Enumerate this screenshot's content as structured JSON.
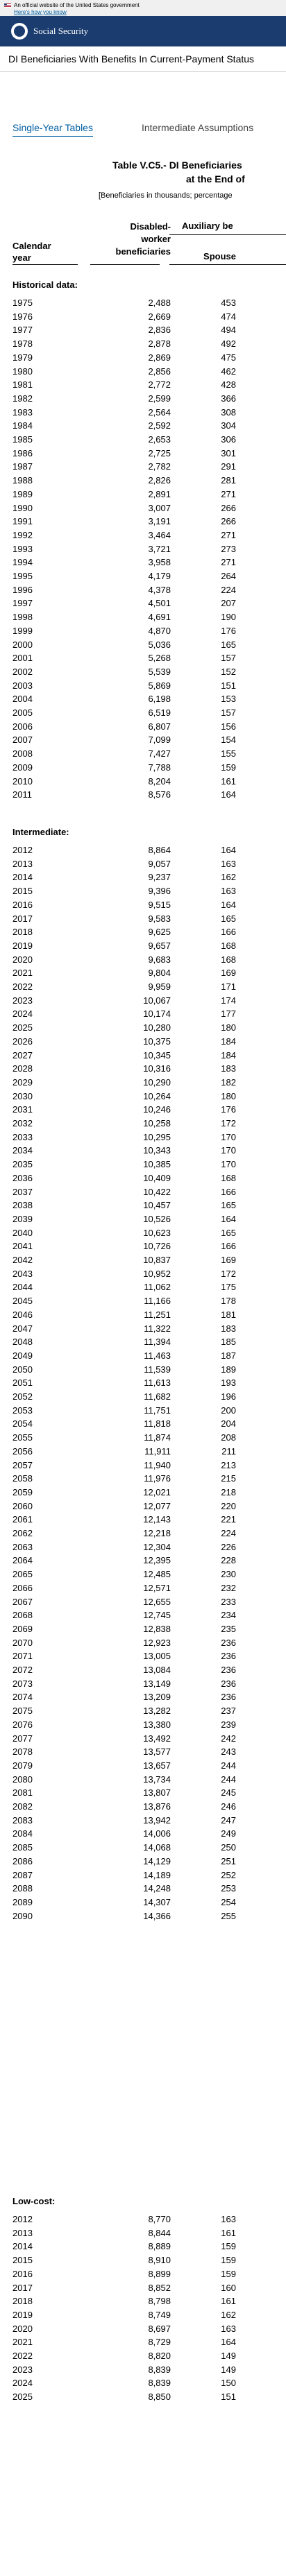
{
  "banner": {
    "text": "An official website of the United States government",
    "link": "Here's how you know"
  },
  "header": {
    "site_name": "Social Security"
  },
  "page_title": "DI Beneficiaries With Benefits In Current-Payment Status",
  "tabs": [
    {
      "label": "Single-Year Tables",
      "active": true
    },
    {
      "label": "Intermediate Assumptions",
      "active": false
    }
  ],
  "table": {
    "caption_line1": "Table V.C5.- DI Beneficiaries",
    "caption_line2": "at the End of",
    "note": "[Beneficiaries in thousands; percentage",
    "columns": {
      "year": [
        "Calendar",
        "year"
      ],
      "disabled": [
        "Disabled-",
        "worker",
        "beneficiaries"
      ],
      "group": "Auxiliary be",
      "spouse": "Spouse"
    },
    "sections": [
      {
        "label": "Historical data:",
        "rows": [
          [
            "1975",
            "2,488",
            "453"
          ],
          [
            "1976",
            "2,669",
            "474"
          ],
          [
            "1977",
            "2,836",
            "494"
          ],
          [
            "1978",
            "2,878",
            "492"
          ],
          [
            "1979",
            "2,869",
            "475"
          ],
          [
            "1980",
            "2,856",
            "462"
          ],
          [
            "1981",
            "2,772",
            "428"
          ],
          [
            "1982",
            "2,599",
            "366"
          ],
          [
            "1983",
            "2,564",
            "308"
          ],
          [
            "1984",
            "2,592",
            "304"
          ],
          [
            "1985",
            "2,653",
            "306"
          ],
          [
            "1986",
            "2,725",
            "301"
          ],
          [
            "1987",
            "2,782",
            "291"
          ],
          [
            "1988",
            "2,826",
            "281"
          ],
          [
            "1989",
            "2,891",
            "271"
          ],
          [
            "1990",
            "3,007",
            "266"
          ],
          [
            "1991",
            "3,191",
            "266"
          ],
          [
            "1992",
            "3,464",
            "271"
          ],
          [
            "1993",
            "3,721",
            "273"
          ],
          [
            "1994",
            "3,958",
            "271"
          ],
          [
            "1995",
            "4,179",
            "264"
          ],
          [
            "1996",
            "4,378",
            "224"
          ],
          [
            "1997",
            "4,501",
            "207"
          ],
          [
            "1998",
            "4,691",
            "190"
          ],
          [
            "1999",
            "4,870",
            "176"
          ],
          [
            "2000",
            "5,036",
            "165"
          ],
          [
            "2001",
            "5,268",
            "157"
          ],
          [
            "2002",
            "5,539",
            "152"
          ],
          [
            "2003",
            "5,869",
            "151"
          ],
          [
            "2004",
            "6,198",
            "153"
          ],
          [
            "2005",
            "6,519",
            "157"
          ],
          [
            "2006",
            "6,807",
            "156"
          ],
          [
            "2007",
            "7,099",
            "154"
          ],
          [
            "2008",
            "7,427",
            "155"
          ],
          [
            "2009",
            "7,788",
            "159"
          ],
          [
            "2010",
            "8,204",
            "161"
          ],
          [
            "2011",
            "8,576",
            "164"
          ]
        ]
      },
      {
        "label": "Intermediate:",
        "rows": [
          [
            "2012",
            "8,864",
            "164"
          ],
          [
            "2013",
            "9,057",
            "163"
          ],
          [
            "2014",
            "9,237",
            "162"
          ],
          [
            "2015",
            "9,396",
            "163"
          ],
          [
            "2016",
            "9,515",
            "164"
          ],
          [
            "2017",
            "9,583",
            "165"
          ],
          [
            "2018",
            "9,625",
            "166"
          ],
          [
            "2019",
            "9,657",
            "168"
          ],
          [
            "2020",
            "9,683",
            "168"
          ],
          [
            "2021",
            "9,804",
            "169"
          ],
          [
            "2022",
            "9,959",
            "171"
          ],
          [
            "2023",
            "10,067",
            "174"
          ],
          [
            "2024",
            "10,174",
            "177"
          ],
          [
            "2025",
            "10,280",
            "180"
          ],
          [
            "2026",
            "10,375",
            "184"
          ],
          [
            "2027",
            "10,345",
            "184"
          ],
          [
            "2028",
            "10,316",
            "183"
          ],
          [
            "2029",
            "10,290",
            "182"
          ],
          [
            "2030",
            "10,264",
            "180"
          ],
          [
            "2031",
            "10,246",
            "176"
          ],
          [
            "2032",
            "10,258",
            "172"
          ],
          [
            "2033",
            "10,295",
            "170"
          ],
          [
            "2034",
            "10,343",
            "170"
          ],
          [
            "2035",
            "10,385",
            "170"
          ],
          [
            "2036",
            "10,409",
            "168"
          ],
          [
            "2037",
            "10,422",
            "166"
          ],
          [
            "2038",
            "10,457",
            "165"
          ],
          [
            "2039",
            "10,526",
            "164"
          ],
          [
            "2040",
            "10,623",
            "165"
          ],
          [
            "2041",
            "10,726",
            "166"
          ],
          [
            "2042",
            "10,837",
            "169"
          ],
          [
            "2043",
            "10,952",
            "172"
          ],
          [
            "2044",
            "11,062",
            "175"
          ],
          [
            "2045",
            "11,166",
            "178"
          ],
          [
            "2046",
            "11,251",
            "181"
          ],
          [
            "2047",
            "11,322",
            "183"
          ],
          [
            "2048",
            "11,394",
            "185"
          ],
          [
            "2049",
            "11,463",
            "187"
          ],
          [
            "2050",
            "11,539",
            "189"
          ],
          [
            "2051",
            "11,613",
            "193"
          ],
          [
            "2052",
            "11,682",
            "196"
          ],
          [
            "2053",
            "11,751",
            "200"
          ],
          [
            "2054",
            "11,818",
            "204"
          ],
          [
            "2055",
            "11,874",
            "208"
          ],
          [
            "2056",
            "11,911",
            "211"
          ],
          [
            "2057",
            "11,940",
            "213"
          ],
          [
            "2058",
            "11,976",
            "215"
          ],
          [
            "2059",
            "12,021",
            "218"
          ],
          [
            "2060",
            "12,077",
            "220"
          ],
          [
            "2061",
            "12,143",
            "221"
          ],
          [
            "2062",
            "12,218",
            "224"
          ],
          [
            "2063",
            "12,304",
            "226"
          ],
          [
            "2064",
            "12,395",
            "228"
          ],
          [
            "2065",
            "12,485",
            "230"
          ],
          [
            "2066",
            "12,571",
            "232"
          ],
          [
            "2067",
            "12,655",
            "233"
          ],
          [
            "2068",
            "12,745",
            "234"
          ],
          [
            "2069",
            "12,838",
            "235"
          ],
          [
            "2070",
            "12,923",
            "236"
          ],
          [
            "2071",
            "13,005",
            "236"
          ],
          [
            "2072",
            "13,084",
            "236"
          ],
          [
            "2073",
            "13,149",
            "236"
          ],
          [
            "2074",
            "13,209",
            "236"
          ],
          [
            "2075",
            "13,282",
            "237"
          ],
          [
            "2076",
            "13,380",
            "239"
          ],
          [
            "2077",
            "13,492",
            "242"
          ],
          [
            "2078",
            "13,577",
            "243"
          ],
          [
            "2079",
            "13,657",
            "244"
          ],
          [
            "2080",
            "13,734",
            "244"
          ],
          [
            "2081",
            "13,807",
            "245"
          ],
          [
            "2082",
            "13,876",
            "246"
          ],
          [
            "2083",
            "13,942",
            "247"
          ],
          [
            "2084",
            "14,006",
            "249"
          ],
          [
            "2085",
            "14,068",
            "250"
          ],
          [
            "2086",
            "14,129",
            "251"
          ],
          [
            "2087",
            "14,189",
            "252"
          ],
          [
            "2088",
            "14,248",
            "253"
          ],
          [
            "2089",
            "14,307",
            "254"
          ],
          [
            "2090",
            "14,366",
            "255"
          ]
        ]
      },
      {
        "label": "Low-cost:",
        "rows": [
          [
            "2012",
            "8,770",
            "163"
          ],
          [
            "2013",
            "8,844",
            "161"
          ],
          [
            "2014",
            "8,889",
            "159"
          ],
          [
            "2015",
            "8,910",
            "159"
          ],
          [
            "2016",
            "8,899",
            "159"
          ],
          [
            "2017",
            "8,852",
            "160"
          ],
          [
            "2018",
            "8,798",
            "161"
          ],
          [
            "2019",
            "8,749",
            "162"
          ],
          [
            "2020",
            "8,697",
            "163"
          ],
          [
            "2021",
            "8,729",
            "164"
          ],
          [
            "2022",
            "8,820",
            "149"
          ],
          [
            "2023",
            "8,839",
            "149"
          ],
          [
            "2024",
            "8,839",
            "150"
          ],
          [
            "2025",
            "8,850",
            "151"
          ]
        ]
      }
    ]
  }
}
